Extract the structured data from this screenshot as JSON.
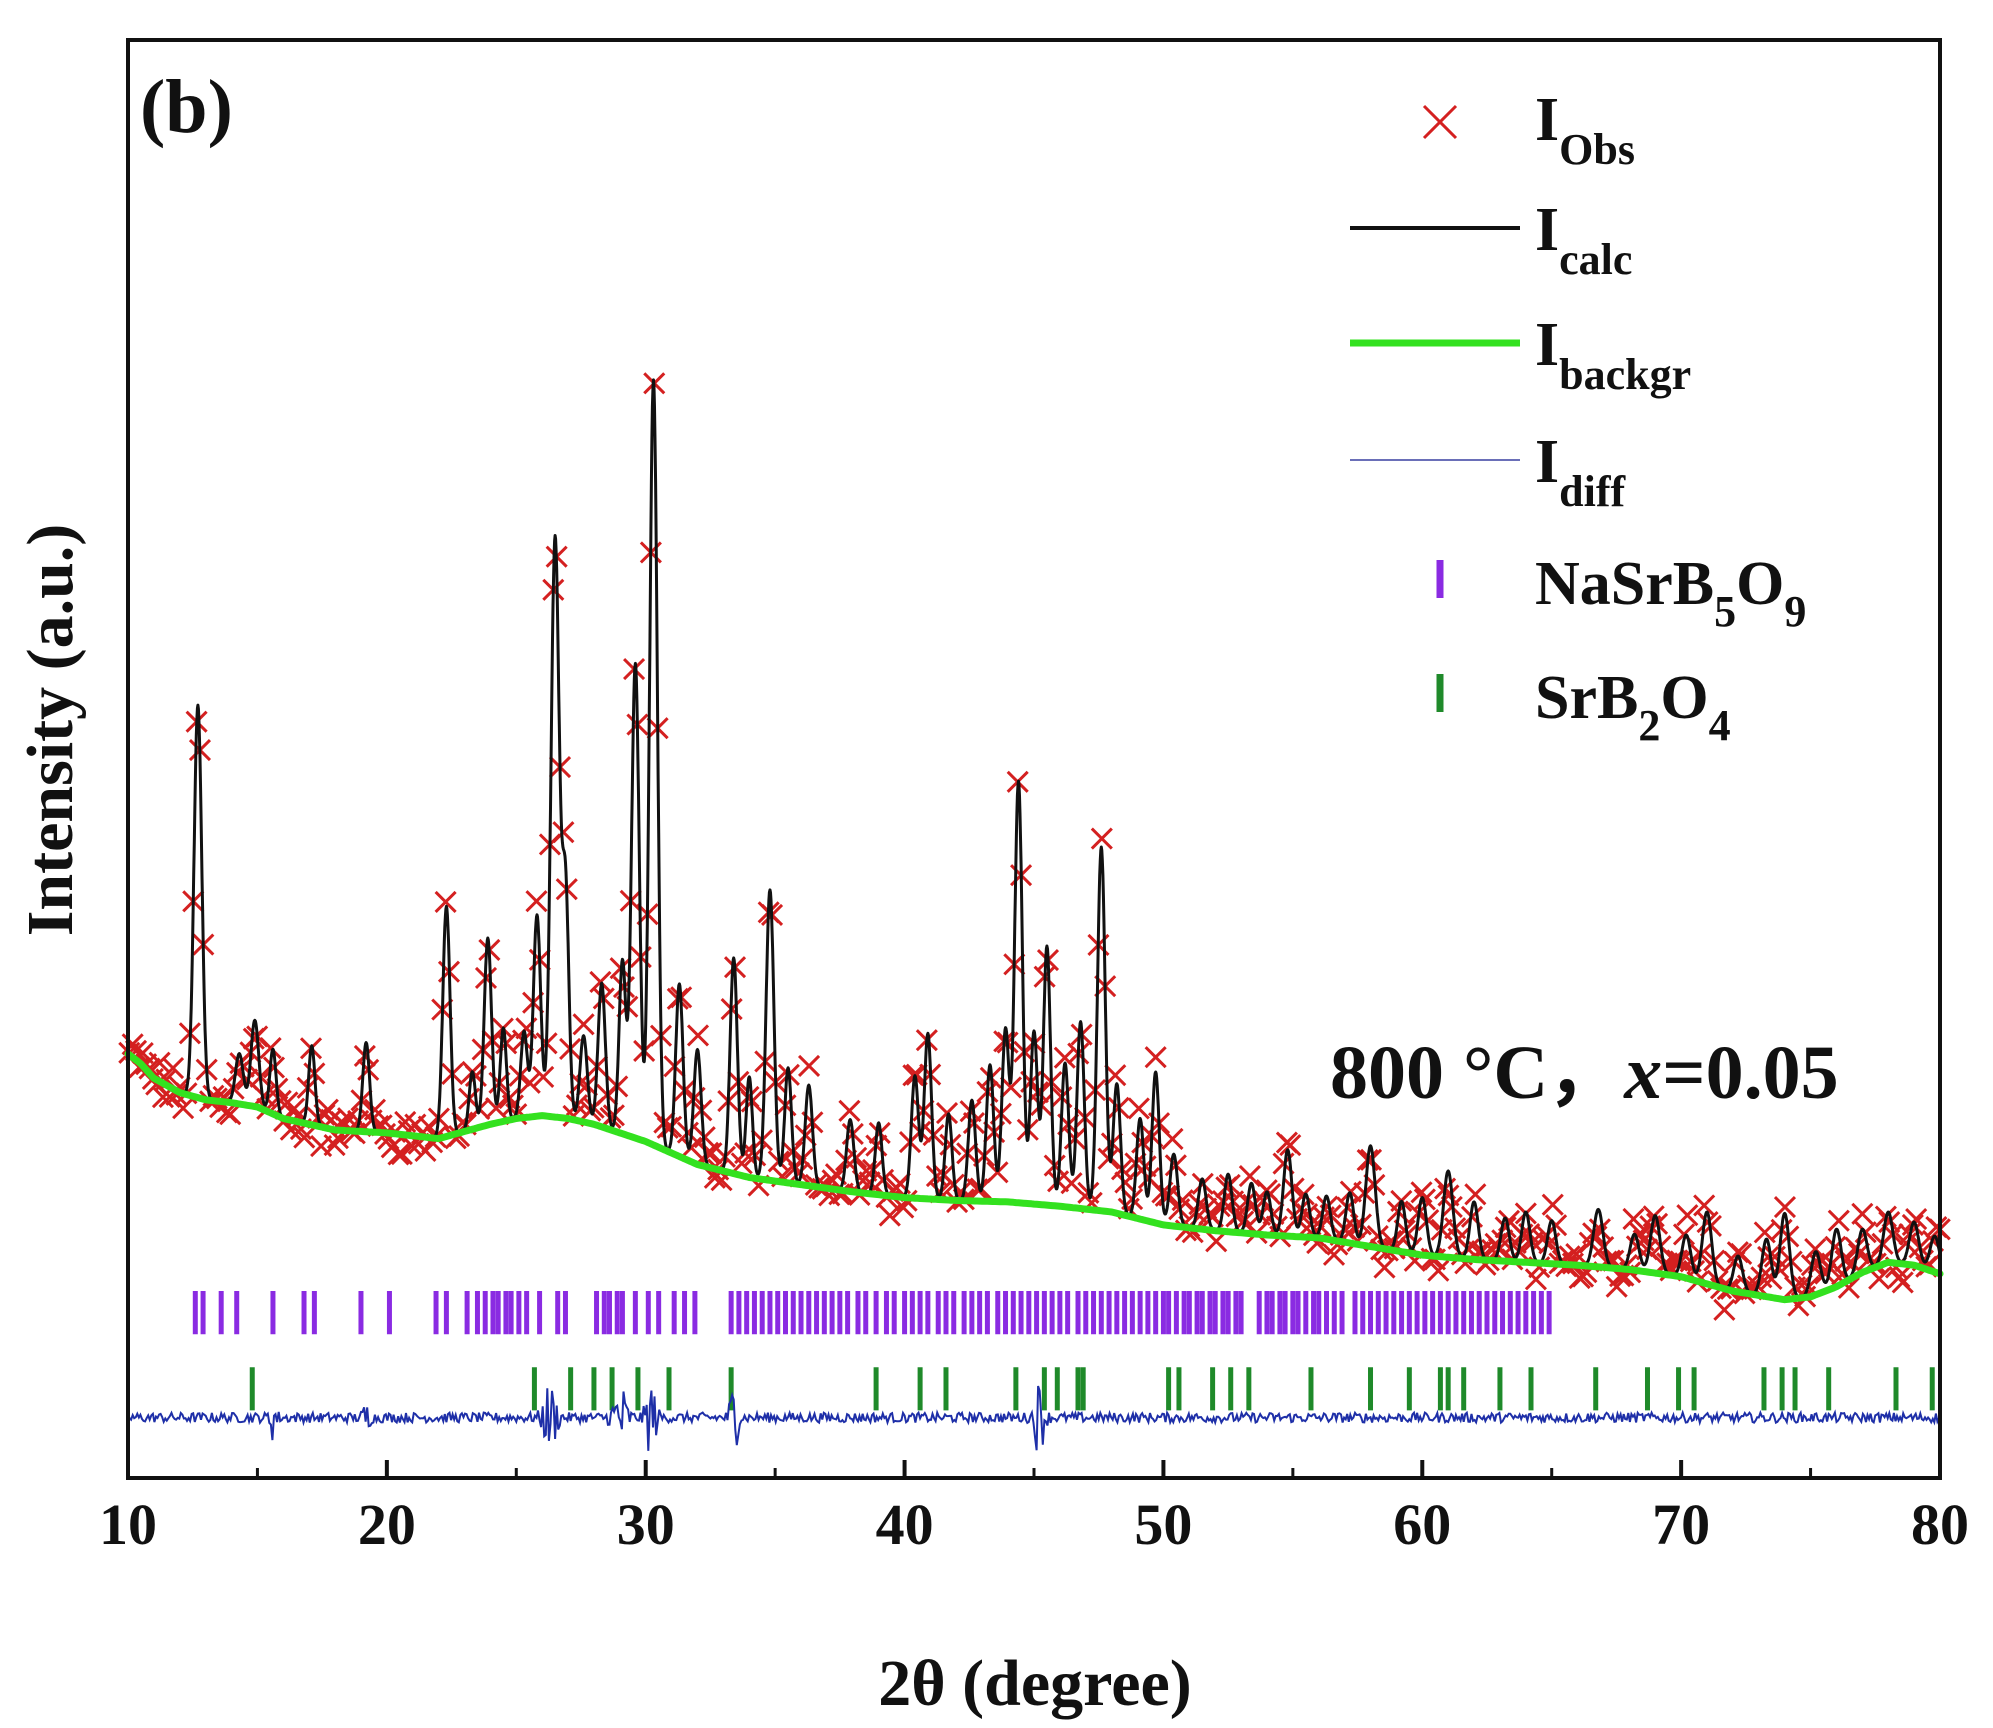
{
  "chart_data": {
    "type": "line",
    "panel_label": "(b)",
    "xlabel": "2θ (degree)",
    "ylabel": "Intensity (a.u.)",
    "xlim": [
      10,
      80
    ],
    "ylim": [
      0,
      100
    ],
    "x_ticks": [
      10,
      20,
      30,
      40,
      50,
      60,
      70,
      80
    ],
    "y_ticks_shown": false,
    "annotation": {
      "prefix": "800 °C，",
      "variable": "x",
      "suffix": "=0.05"
    },
    "legend": {
      "placement": "top-right",
      "entries": [
        {
          "key": "obs",
          "marker": "×",
          "main": "I",
          "sub": "Obs"
        },
        {
          "key": "calc",
          "marker": "line",
          "main": "I",
          "sub": "calc"
        },
        {
          "key": "backgr",
          "marker": "line",
          "main": "I",
          "sub": "backgr"
        },
        {
          "key": "diff",
          "marker": "line",
          "main": "I",
          "sub": "diff"
        },
        {
          "key": "phase1",
          "marker": "bar",
          "parts": [
            [
              "NaSrB",
              false
            ],
            [
              "5",
              true
            ],
            [
              "O",
              false
            ],
            [
              "9",
              true
            ]
          ]
        },
        {
          "key": "phase2",
          "marker": "bar",
          "parts": [
            [
              "SrB",
              false
            ],
            [
              "2",
              true
            ],
            [
              "O",
              false
            ],
            [
              "4",
              true
            ]
          ]
        }
      ]
    },
    "colors": {
      "obs": "#d42020",
      "calc": "#111111",
      "backgr": "#33e11f",
      "diff": "#1e2fa8",
      "phase1": "#8a2be2",
      "phase2": "#1f8a2a",
      "axis": "#111111"
    },
    "series": [
      {
        "name": "I_backgr",
        "x": [
          10,
          10.5,
          11,
          12,
          13,
          14,
          15,
          16,
          18,
          20,
          22,
          24,
          25,
          26,
          27,
          28,
          30,
          32,
          34,
          36,
          38,
          40,
          42,
          44,
          46,
          48,
          50,
          52,
          54,
          56,
          58,
          60,
          62,
          64,
          66,
          68,
          70,
          71,
          72,
          73,
          74,
          75,
          76,
          77,
          78,
          79,
          80
        ],
        "y": [
          29.5,
          28.8,
          27.8,
          26.8,
          26.3,
          26.1,
          25.8,
          25.0,
          24.2,
          24.0,
          23.6,
          24.6,
          25.0,
          25.2,
          25.0,
          24.6,
          23.4,
          21.8,
          20.9,
          20.4,
          19.9,
          19.5,
          19.3,
          19.2,
          18.9,
          18.5,
          17.6,
          17.2,
          16.9,
          16.7,
          16.1,
          15.5,
          15.2,
          15.0,
          14.8,
          14.5,
          14.0,
          13.5,
          13.0,
          12.7,
          12.4,
          12.6,
          13.3,
          14.3,
          15.0,
          14.8,
          14.2
        ]
      },
      {
        "name": "I_calc",
        "peaks": [
          [
            12.7,
            27.3,
            0.15
          ],
          [
            14.3,
            3.5,
            0.15
          ],
          [
            14.9,
            6.0,
            0.15
          ],
          [
            15.6,
            4.5,
            0.12
          ],
          [
            17.1,
            5.5,
            0.12
          ],
          [
            19.2,
            6.2,
            0.13
          ],
          [
            22.3,
            16.0,
            0.14
          ],
          [
            23.3,
            4.0,
            0.12
          ],
          [
            23.9,
            13.0,
            0.14
          ],
          [
            24.5,
            6.5,
            0.12
          ],
          [
            25.3,
            6.0,
            0.13
          ],
          [
            25.8,
            14.0,
            0.14
          ],
          [
            26.5,
            40.3,
            0.16
          ],
          [
            26.9,
            16.0,
            0.13
          ],
          [
            27.6,
            6.0,
            0.14
          ],
          [
            28.3,
            10.0,
            0.14
          ],
          [
            29.1,
            12.0,
            0.13
          ],
          [
            29.6,
            33.0,
            0.15
          ],
          [
            30.3,
            53.2,
            0.15
          ],
          [
            31.3,
            12.0,
            0.14
          ],
          [
            32.0,
            8.0,
            0.14
          ],
          [
            33.4,
            15.0,
            0.14
          ],
          [
            34.0,
            7.0,
            0.12
          ],
          [
            34.8,
            20.2,
            0.15
          ],
          [
            35.5,
            8.0,
            0.13
          ],
          [
            36.3,
            7.0,
            0.14
          ],
          [
            37.9,
            5.0,
            0.14
          ],
          [
            39.0,
            5.0,
            0.13
          ],
          [
            40.4,
            8.5,
            0.14
          ],
          [
            40.9,
            11.5,
            0.14
          ],
          [
            41.7,
            6.0,
            0.13
          ],
          [
            42.6,
            7.0,
            0.14
          ],
          [
            43.3,
            9.5,
            0.14
          ],
          [
            43.9,
            12.0,
            0.14
          ],
          [
            44.4,
            29.3,
            0.15
          ],
          [
            45.0,
            12.0,
            0.14
          ],
          [
            45.5,
            18.0,
            0.14
          ],
          [
            46.2,
            10.0,
            0.14
          ],
          [
            46.8,
            13.0,
            0.14
          ],
          [
            47.6,
            25.3,
            0.15
          ],
          [
            48.2,
            9.0,
            0.14
          ],
          [
            49.1,
            7.0,
            0.14
          ],
          [
            49.7,
            10.5,
            0.14
          ],
          [
            50.4,
            5.0,
            0.15
          ],
          [
            51.5,
            3.5,
            0.15
          ],
          [
            52.5,
            4.0,
            0.15
          ],
          [
            53.4,
            3.5,
            0.15
          ],
          [
            54.0,
            3.0,
            0.15
          ],
          [
            54.8,
            6.0,
            0.16
          ],
          [
            55.5,
            3.0,
            0.15
          ],
          [
            56.3,
            3.0,
            0.15
          ],
          [
            57.2,
            3.5,
            0.15
          ],
          [
            58.0,
            7.0,
            0.18
          ],
          [
            59.2,
            3.5,
            0.15
          ],
          [
            60.0,
            4.0,
            0.16
          ],
          [
            61.0,
            6.0,
            0.18
          ],
          [
            62.0,
            4.0,
            0.16
          ],
          [
            63.2,
            3.0,
            0.16
          ],
          [
            64.0,
            3.5,
            0.16
          ],
          [
            65.0,
            3.0,
            0.16
          ],
          [
            66.8,
            4.0,
            0.18
          ],
          [
            68.2,
            2.5,
            0.17
          ],
          [
            69.0,
            4.0,
            0.18
          ],
          [
            70.2,
            3.0,
            0.17
          ],
          [
            71.0,
            5.0,
            0.18
          ],
          [
            72.2,
            2.5,
            0.17
          ],
          [
            73.3,
            4.0,
            0.18
          ],
          [
            74.0,
            6.0,
            0.18
          ],
          [
            75.2,
            3.0,
            0.18
          ],
          [
            76.0,
            4.0,
            0.18
          ],
          [
            77.0,
            3.0,
            0.18
          ],
          [
            78.0,
            3.5,
            0.18
          ],
          [
            79.0,
            3.0,
            0.18
          ],
          [
            79.8,
            2.5,
            0.18
          ]
        ]
      },
      {
        "name": "I_Obs",
        "marker": "x",
        "step": 0.13
      },
      {
        "name": "I_diff",
        "baseline": 4.2,
        "features": [
          [
            26.3,
            2.2,
            0.2
          ],
          [
            29.0,
            2.4,
            0.2
          ],
          [
            30.2,
            2.6,
            0.15
          ],
          [
            33.4,
            2.6,
            0.12
          ],
          [
            45.2,
            2.4,
            0.15
          ],
          [
            15.6,
            1.4,
            0.1
          ],
          [
            19.2,
            1.0,
            0.1
          ]
        ]
      }
    ],
    "reflections": [
      {
        "phase": "NaSrB5O9",
        "level": 11.5,
        "positions": [
          12.6,
          12.9,
          13.6,
          14.2,
          15.6,
          16.8,
          17.2,
          19.0,
          20.1,
          21.9,
          22.3,
          23.1,
          23.5,
          23.8,
          24.1,
          24.3,
          24.6,
          24.8,
          25.1,
          25.4,
          25.9,
          26.6,
          26.9,
          28.1,
          28.4,
          28.6,
          28.9,
          29.1,
          29.6,
          30.1,
          30.5,
          31.1,
          31.5,
          31.9,
          33.3,
          33.6,
          33.9,
          34.2,
          34.5,
          34.8,
          35.1,
          35.4,
          35.7,
          36.0,
          36.3,
          36.6,
          36.9,
          37.2,
          37.5,
          37.8,
          38.2,
          38.5,
          38.9,
          39.3,
          39.6,
          40.0,
          40.3,
          40.6,
          40.9,
          41.3,
          41.6,
          41.9,
          42.3,
          42.6,
          42.9,
          43.2,
          43.6,
          43.9,
          44.2,
          44.5,
          44.8,
          45.1,
          45.4,
          45.7,
          46.0,
          46.3,
          46.7,
          47.0,
          47.3,
          47.6,
          47.9,
          48.2,
          48.5,
          48.8,
          49.1,
          49.4,
          49.7,
          50.0,
          50.2,
          50.5,
          50.8,
          51.0,
          51.3,
          51.5,
          51.8,
          52.0,
          52.3,
          52.5,
          52.8,
          53.0,
          53.7,
          54.0,
          54.2,
          54.5,
          54.7,
          55.0,
          55.2,
          55.5,
          55.8,
          56.0,
          56.3,
          56.6,
          56.9,
          57.4,
          57.7,
          58.0,
          58.3,
          58.6,
          58.9,
          59.2,
          59.5,
          59.8,
          60.1,
          60.4,
          60.7,
          61.0,
          61.3,
          61.6,
          61.9,
          62.2,
          62.5,
          62.8,
          63.1,
          63.4,
          63.7,
          64.0,
          64.3,
          64.6,
          64.9
        ]
      },
      {
        "phase": "SrB2O4",
        "level": 6.2,
        "positions": [
          14.8,
          25.7,
          27.1,
          28.0,
          28.7,
          29.7,
          30.9,
          33.3,
          38.9,
          40.6,
          41.6,
          44.3,
          45.4,
          45.9,
          46.7,
          46.9,
          50.2,
          50.6,
          51.9,
          52.6,
          53.3,
          55.7,
          58.0,
          59.5,
          60.7,
          61.0,
          61.6,
          63.0,
          64.2,
          66.7,
          68.7,
          69.9,
          70.5,
          73.2,
          73.9,
          74.4,
          75.7,
          78.3,
          79.7
        ]
      }
    ]
  }
}
